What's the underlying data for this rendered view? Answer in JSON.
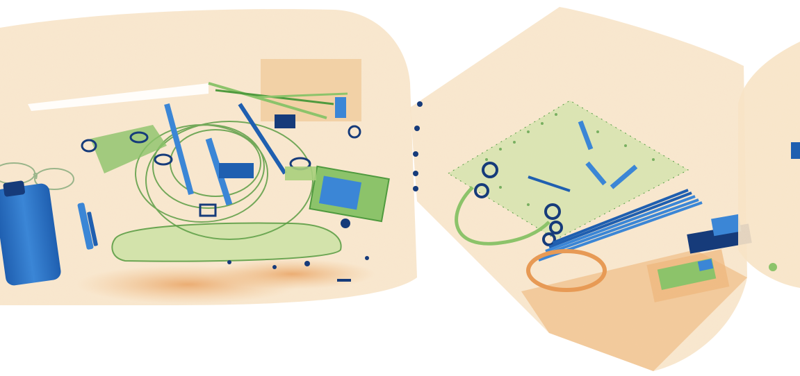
{
  "scene": {
    "kind": "x-ray baggage scan",
    "colors": {
      "background": "#ffffff",
      "organic_light": "#f6dcb6",
      "organic_mid": "#eeb77c",
      "organic_dark": "#e79a55",
      "mixed_green": "#8cc36a",
      "mixed_green_dark": "#4f9a3e",
      "metal_blue": "#3b86d6",
      "metal_blue_dark": "#1f5fb0",
      "dense_navy": "#163b7a"
    },
    "objects": [
      "suitcase-left",
      "eyeglasses",
      "bottle",
      "pen",
      "pouch",
      "cable-coil",
      "scissors-cluster",
      "electronic-device",
      "box-right",
      "circuit-board",
      "keys",
      "pen-bundle",
      "usb-device",
      "cable-loop",
      "bag-edge"
    ]
  }
}
